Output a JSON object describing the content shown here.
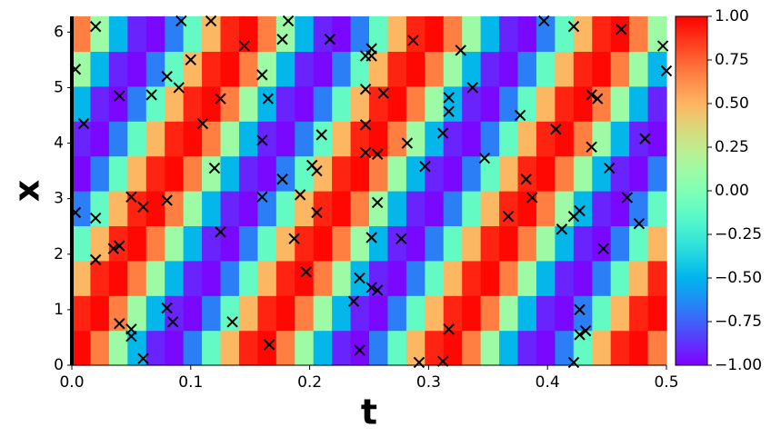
{
  "chart_data": {
    "type": "heatmap",
    "x_label": "t",
    "y_label": "x",
    "xlim": [
      0,
      0.5
    ],
    "ylim": [
      0,
      6.283
    ],
    "xticks": [
      {
        "value": 0,
        "label": "0.0"
      },
      0.1,
      0.2,
      0.3,
      0.4,
      0.5
    ],
    "yticks": [
      0,
      1,
      2,
      3,
      4,
      5,
      6
    ],
    "colormap": "rainbow",
    "clim": [
      -1,
      1
    ],
    "cticks": [
      {
        "value": -1,
        "label": "−1.00"
      },
      {
        "value": -0.75,
        "label": "−0.75"
      },
      {
        "value": -0.5,
        "label": "−0.50"
      },
      {
        "value": -0.25,
        "label": "−0.25"
      },
      {
        "value": 0,
        "label": "0.00"
      },
      {
        "value": 0.25,
        "label": "0.25"
      },
      {
        "value": 0.5,
        "label": "0.50"
      },
      {
        "value": 0.75,
        "label": "0.75"
      },
      {
        "value": 1,
        "label": "1.00"
      }
    ],
    "z": [
      [
        0.98,
        0.67,
        0.11,
        -0.49,
        -0.91,
        -0.98,
        -0.67,
        -0.11,
        0.49,
        0.91,
        0.98,
        0.67,
        0.11,
        -0.49,
        -0.91,
        -0.98,
        -0.67,
        -0.11,
        0.49,
        0.91,
        0.98,
        0.67,
        0.11,
        -0.49,
        -0.91,
        -0.98,
        -0.67,
        -0.11,
        0.49,
        0.91,
        0.98,
        0.67
      ],
      [
        0.91,
        0.98,
        0.67,
        0.11,
        -0.49,
        -0.91,
        -0.98,
        -0.67,
        -0.11,
        0.49,
        0.91,
        0.98,
        0.67,
        0.11,
        -0.49,
        -0.91,
        -0.98,
        -0.67,
        -0.11,
        0.49,
        0.91,
        0.98,
        0.67,
        0.11,
        -0.49,
        -0.91,
        -0.98,
        -0.67,
        -0.11,
        0.49,
        0.91,
        0.98
      ],
      [
        0.49,
        0.91,
        0.98,
        0.67,
        0.11,
        -0.49,
        -0.91,
        -0.98,
        -0.67,
        -0.11,
        0.49,
        0.91,
        0.98,
        0.67,
        0.11,
        -0.49,
        -0.91,
        -0.98,
        -0.67,
        -0.11,
        0.49,
        0.91,
        0.98,
        0.67,
        0.11,
        -0.49,
        -0.91,
        -0.98,
        -0.67,
        -0.11,
        0.49,
        0.91
      ],
      [
        -0.11,
        0.49,
        0.91,
        0.98,
        0.67,
        0.11,
        -0.49,
        -0.91,
        -0.98,
        -0.67,
        -0.11,
        0.49,
        0.91,
        0.98,
        0.67,
        0.11,
        -0.49,
        -0.91,
        -0.98,
        -0.67,
        -0.11,
        0.49,
        0.91,
        0.98,
        0.67,
        0.11,
        -0.49,
        -0.91,
        -0.98,
        -0.67,
        -0.11,
        0.49
      ],
      [
        -0.67,
        -0.11,
        0.49,
        0.91,
        0.98,
        0.67,
        0.11,
        -0.49,
        -0.91,
        -0.98,
        -0.67,
        -0.11,
        0.49,
        0.91,
        0.98,
        0.67,
        0.11,
        -0.49,
        -0.91,
        -0.98,
        -0.67,
        -0.11,
        0.49,
        0.91,
        0.98,
        0.67,
        0.11,
        -0.49,
        -0.91,
        -0.98,
        -0.67,
        -0.11
      ],
      [
        -0.98,
        -0.67,
        -0.11,
        0.49,
        0.91,
        0.98,
        0.67,
        0.11,
        -0.49,
        -0.91,
        -0.98,
        -0.67,
        -0.11,
        0.49,
        0.91,
        0.98,
        0.67,
        0.11,
        -0.49,
        -0.91,
        -0.98,
        -0.67,
        -0.11,
        0.49,
        0.91,
        0.98,
        0.67,
        0.11,
        -0.49,
        -0.91,
        -0.98,
        -0.67
      ],
      [
        -0.91,
        -0.98,
        -0.67,
        -0.11,
        0.49,
        0.91,
        0.98,
        0.67,
        0.11,
        -0.49,
        -0.91,
        -0.98,
        -0.67,
        -0.11,
        0.49,
        0.91,
        0.98,
        0.67,
        0.11,
        -0.49,
        -0.91,
        -0.98,
        -0.67,
        -0.11,
        0.49,
        0.91,
        0.98,
        0.67,
        0.11,
        -0.49,
        -0.91,
        -0.98
      ],
      [
        -0.49,
        -0.91,
        -0.98,
        -0.67,
        -0.11,
        0.49,
        0.91,
        0.98,
        0.67,
        0.11,
        -0.49,
        -0.91,
        -0.98,
        -0.67,
        -0.11,
        0.49,
        0.91,
        0.98,
        0.67,
        0.11,
        -0.49,
        -0.91,
        -0.98,
        -0.67,
        -0.11,
        0.49,
        0.91,
        0.98,
        0.67,
        0.11,
        -0.49,
        -0.91
      ],
      [
        0.11,
        -0.49,
        -0.91,
        -0.98,
        -0.67,
        -0.11,
        0.49,
        0.91,
        0.98,
        0.67,
        0.11,
        -0.49,
        -0.91,
        -0.98,
        -0.67,
        -0.11,
        0.49,
        0.91,
        0.98,
        0.67,
        0.11,
        -0.49,
        -0.91,
        -0.98,
        -0.67,
        -0.11,
        0.49,
        0.91,
        0.98,
        0.67,
        0.11,
        -0.49
      ],
      [
        0.67,
        0.11,
        -0.49,
        -0.91,
        -0.98,
        -0.67,
        -0.11,
        0.49,
        0.91,
        0.98,
        0.67,
        0.11,
        -0.49,
        -0.91,
        -0.98,
        -0.67,
        -0.11,
        0.49,
        0.91,
        0.98,
        0.67,
        0.11,
        -0.49,
        -0.91,
        -0.98,
        -0.67,
        -0.11,
        0.49,
        0.91,
        0.98,
        0.67,
        0.11
      ]
    ],
    "points": {
      "marker": "x",
      "color": "#000000",
      "t": [
        0.003,
        0.02,
        0.01,
        0.003,
        0.02,
        0.02,
        0.035,
        0.04,
        0.04,
        0.04,
        0.05,
        0.05,
        0.05,
        0.06,
        0.06,
        0.067,
        0.08,
        0.08,
        0.08,
        0.085,
        0.09,
        0.092,
        0.1,
        0.11,
        0.117,
        0.12,
        0.125,
        0.125,
        0.135,
        0.145,
        0.16,
        0.16,
        0.16,
        0.165,
        0.166,
        0.177,
        0.177,
        0.182,
        0.187,
        0.192,
        0.197,
        0.202,
        0.206,
        0.206,
        0.21,
        0.217,
        0.237,
        0.242,
        0.242,
        0.247,
        0.247,
        0.247,
        0.247,
        0.252,
        0.252,
        0.252,
        0.252,
        0.257,
        0.257,
        0.257,
        0.262,
        0.277,
        0.282,
        0.287,
        0.292,
        0.297,
        0.312,
        0.312,
        0.317,
        0.317,
        0.317,
        0.327,
        0.337,
        0.347,
        0.367,
        0.377,
        0.382,
        0.387,
        0.397,
        0.407,
        0.412,
        0.422,
        0.422,
        0.422,
        0.427,
        0.427,
        0.427,
        0.432,
        0.437,
        0.437,
        0.442,
        0.447,
        0.452,
        0.462,
        0.467,
        0.477,
        0.482,
        0.497,
        0.5
      ],
      "x": [
        5.33,
        6.1,
        4.35,
        2.75,
        2.65,
        1.9,
        2.1,
        2.15,
        4.85,
        0.75,
        0.65,
        0.52,
        3.03,
        2.85,
        0.12,
        4.87,
        5.2,
        2.97,
        1.03,
        0.78,
        5.0,
        6.2,
        5.5,
        4.35,
        6.2,
        3.55,
        4.8,
        2.4,
        0.78,
        5.75,
        5.23,
        4.05,
        3.03,
        4.8,
        0.37,
        5.87,
        3.35,
        6.2,
        2.28,
        3.07,
        1.68,
        3.6,
        3.5,
        2.75,
        4.15,
        5.87,
        1.15,
        1.57,
        0.27,
        5.57,
        4.97,
        4.33,
        3.83,
        5.7,
        5.57,
        2.3,
        1.4,
        1.35,
        2.93,
        3.8,
        4.9,
        2.28,
        4.0,
        5.85,
        0.05,
        3.58,
        4.18,
        0.07,
        4.82,
        4.57,
        0.65,
        5.67,
        5.0,
        3.73,
        2.68,
        4.5,
        3.35,
        3.02,
        6.2,
        4.25,
        2.45,
        6.1,
        2.68,
        0.05,
        2.78,
        1.0,
        0.55,
        0.62,
        4.87,
        3.93,
        4.8,
        2.1,
        3.55,
        6.05,
        3.02,
        2.55,
        4.08,
        5.75,
        5.3
      ]
    }
  }
}
